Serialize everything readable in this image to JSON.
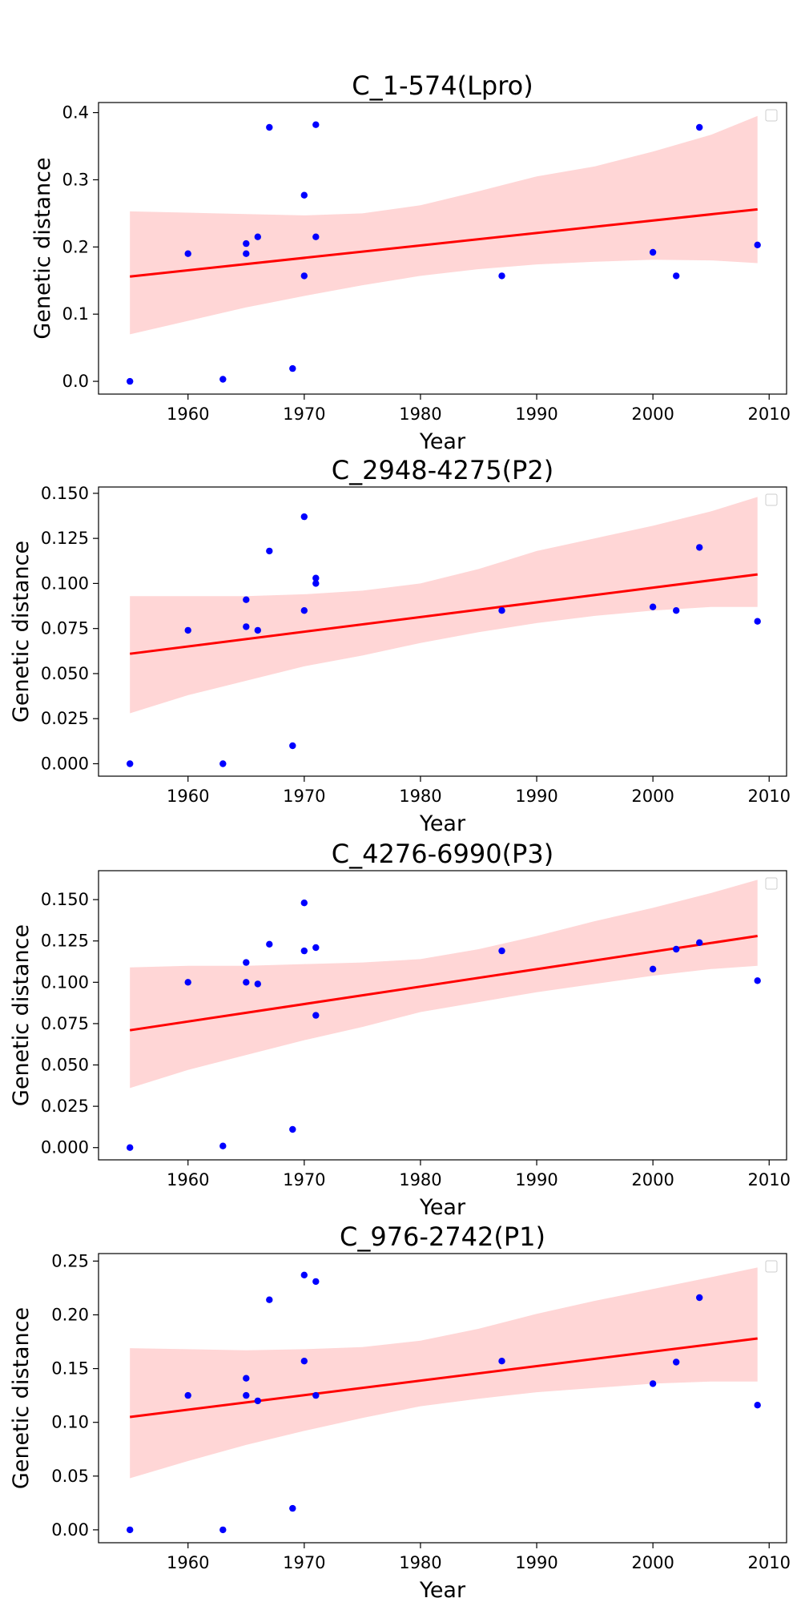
{
  "chart_data": [
    {
      "type": "scatter",
      "title": "C_1-574(Lpro)",
      "xlabel": "Year",
      "ylabel": "Genetic distance",
      "xlim": [
        1952.3,
        2011.5
      ],
      "ylim": [
        -0.019,
        0.415
      ],
      "xticks": [
        1960,
        1970,
        1980,
        1990,
        2000,
        2010
      ],
      "yticks": [
        0.0,
        0.1,
        0.2,
        0.3,
        0.4
      ],
      "ytick_decimals": 1,
      "points": [
        [
          1955,
          0.0
        ],
        [
          1960,
          0.19
        ],
        [
          1963,
          0.003
        ],
        [
          1965,
          0.205
        ],
        [
          1965,
          0.19
        ],
        [
          1966,
          0.215
        ],
        [
          1967,
          0.378
        ],
        [
          1969,
          0.019
        ],
        [
          1970,
          0.277
        ],
        [
          1970,
          0.157
        ],
        [
          1971,
          0.382
        ],
        [
          1971,
          0.215
        ],
        [
          1987,
          0.157
        ],
        [
          2000,
          0.192
        ],
        [
          2002,
          0.157
        ],
        [
          2004,
          0.378
        ],
        [
          2009,
          0.203
        ]
      ],
      "trend_line": [
        [
          1955,
          0.156
        ],
        [
          2009,
          0.256
        ]
      ],
      "confidence_band": {
        "x": [
          1955,
          1960,
          1965,
          1970,
          1975,
          1980,
          1985,
          1990,
          1995,
          2000,
          2005,
          2009
        ],
        "upper": [
          0.253,
          0.251,
          0.249,
          0.247,
          0.25,
          0.262,
          0.283,
          0.305,
          0.32,
          0.342,
          0.367,
          0.395
        ],
        "lower": [
          0.07,
          0.09,
          0.11,
          0.127,
          0.143,
          0.157,
          0.167,
          0.174,
          0.178,
          0.181,
          0.18,
          0.176
        ]
      },
      "legend": "top-right"
    },
    {
      "type": "scatter",
      "title": "C_2948-4275(P2)",
      "xlabel": "Year",
      "ylabel": "Genetic distance",
      "xlim": [
        1952.3,
        2011.5
      ],
      "ylim": [
        -0.0069,
        0.1535
      ],
      "xticks": [
        1960,
        1970,
        1980,
        1990,
        2000,
        2010
      ],
      "yticks": [
        0.0,
        0.025,
        0.05,
        0.075,
        0.1,
        0.125,
        0.15
      ],
      "ytick_decimals": 3,
      "points": [
        [
          1955,
          0.0
        ],
        [
          1960,
          0.074
        ],
        [
          1963,
          0.0
        ],
        [
          1965,
          0.091
        ],
        [
          1965,
          0.076
        ],
        [
          1966,
          0.074
        ],
        [
          1967,
          0.118
        ],
        [
          1969,
          0.01
        ],
        [
          1970,
          0.137
        ],
        [
          1970,
          0.085
        ],
        [
          1971,
          0.103
        ],
        [
          1971,
          0.1
        ],
        [
          1987,
          0.085
        ],
        [
          2000,
          0.087
        ],
        [
          2002,
          0.085
        ],
        [
          2004,
          0.12
        ],
        [
          2009,
          0.079
        ]
      ],
      "trend_line": [
        [
          1955,
          0.061
        ],
        [
          2009,
          0.105
        ]
      ],
      "confidence_band": {
        "x": [
          1955,
          1960,
          1965,
          1970,
          1975,
          1980,
          1985,
          1990,
          1995,
          2000,
          2005,
          2009
        ],
        "upper": [
          0.093,
          0.093,
          0.093,
          0.094,
          0.096,
          0.1,
          0.108,
          0.118,
          0.125,
          0.132,
          0.14,
          0.148
        ],
        "lower": [
          0.028,
          0.038,
          0.046,
          0.054,
          0.06,
          0.067,
          0.073,
          0.078,
          0.082,
          0.085,
          0.087,
          0.087
        ]
      },
      "legend": "top-right"
    },
    {
      "type": "scatter",
      "title": "C_4276-6990(P3)",
      "xlabel": "Year",
      "ylabel": "Genetic distance",
      "xlim": [
        1952.3,
        2011.5
      ],
      "ylim": [
        -0.0074,
        0.1675
      ],
      "xticks": [
        1960,
        1970,
        1980,
        1990,
        2000,
        2010
      ],
      "yticks": [
        0.0,
        0.025,
        0.05,
        0.075,
        0.1,
        0.125,
        0.15
      ],
      "ytick_decimals": 3,
      "points": [
        [
          1955,
          0.0
        ],
        [
          1960,
          0.1
        ],
        [
          1963,
          0.001
        ],
        [
          1965,
          0.112
        ],
        [
          1965,
          0.1
        ],
        [
          1966,
          0.099
        ],
        [
          1967,
          0.123
        ],
        [
          1969,
          0.011
        ],
        [
          1970,
          0.148
        ],
        [
          1970,
          0.119
        ],
        [
          1971,
          0.121
        ],
        [
          1971,
          0.08
        ],
        [
          1987,
          0.119
        ],
        [
          2000,
          0.108
        ],
        [
          2002,
          0.12
        ],
        [
          2004,
          0.124
        ],
        [
          2009,
          0.101
        ]
      ],
      "trend_line": [
        [
          1955,
          0.071
        ],
        [
          2009,
          0.128
        ]
      ],
      "confidence_band": {
        "x": [
          1955,
          1960,
          1965,
          1970,
          1975,
          1980,
          1985,
          1990,
          1995,
          2000,
          2005,
          2009
        ],
        "upper": [
          0.109,
          0.11,
          0.11,
          0.111,
          0.112,
          0.114,
          0.12,
          0.128,
          0.137,
          0.145,
          0.154,
          0.162
        ],
        "lower": [
          0.036,
          0.047,
          0.056,
          0.065,
          0.073,
          0.082,
          0.088,
          0.094,
          0.099,
          0.104,
          0.108,
          0.11
        ]
      },
      "legend": "top-right"
    },
    {
      "type": "scatter",
      "title": "C_976-2742(P1)",
      "xlabel": "Year",
      "ylabel": "Genetic distance",
      "xlim": [
        1952.3,
        2011.5
      ],
      "ylim": [
        -0.012,
        0.257
      ],
      "xticks": [
        1960,
        1970,
        1980,
        1990,
        2000,
        2010
      ],
      "yticks": [
        0.0,
        0.05,
        0.1,
        0.15,
        0.2,
        0.25
      ],
      "ytick_decimals": 2,
      "points": [
        [
          1955,
          0.0
        ],
        [
          1960,
          0.125
        ],
        [
          1963,
          0.0
        ],
        [
          1965,
          0.141
        ],
        [
          1965,
          0.125
        ],
        [
          1966,
          0.12
        ],
        [
          1967,
          0.214
        ],
        [
          1969,
          0.02
        ],
        [
          1970,
          0.237
        ],
        [
          1970,
          0.157
        ],
        [
          1971,
          0.231
        ],
        [
          1971,
          0.125
        ],
        [
          1987,
          0.157
        ],
        [
          2000,
          0.136
        ],
        [
          2002,
          0.156
        ],
        [
          2004,
          0.216
        ],
        [
          2009,
          0.116
        ]
      ],
      "trend_line": [
        [
          1955,
          0.105
        ],
        [
          2009,
          0.178
        ]
      ],
      "confidence_band": {
        "x": [
          1955,
          1960,
          1965,
          1970,
          1975,
          1980,
          1985,
          1990,
          1995,
          2000,
          2005,
          2009
        ],
        "upper": [
          0.169,
          0.168,
          0.167,
          0.168,
          0.17,
          0.176,
          0.187,
          0.201,
          0.213,
          0.224,
          0.235,
          0.244
        ],
        "lower": [
          0.048,
          0.064,
          0.079,
          0.092,
          0.104,
          0.115,
          0.122,
          0.128,
          0.132,
          0.136,
          0.138,
          0.138
        ]
      },
      "legend": "top-right"
    }
  ],
  "colors": {
    "points": "#0000ff",
    "trend_line": "#ff0000",
    "confidence_band": "#ffd6d6",
    "axes": "#000000"
  }
}
